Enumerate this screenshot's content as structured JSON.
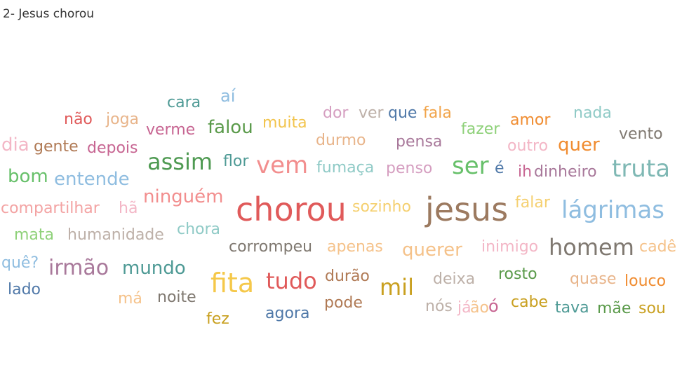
{
  "title": "2- Jesus chorou",
  "chart_data": {
    "type": "wordcloud",
    "title": "2- Jesus chorou",
    "words": [
      {
        "text": "cara",
        "color": "#4e9a95"
      },
      {
        "text": "aí",
        "color": "#8fbde0"
      },
      {
        "text": "não",
        "color": "#e05a5a"
      },
      {
        "text": "joga",
        "color": "#e8b48a"
      },
      {
        "text": "verme",
        "color": "#c76592"
      },
      {
        "text": "falou",
        "color": "#5a9a4a"
      },
      {
        "text": "muita",
        "color": "#f2c44d"
      },
      {
        "text": "dor",
        "color": "#d59ec0"
      },
      {
        "text": "ver",
        "color": "#bdb0a8"
      },
      {
        "text": "que",
        "color": "#4f78a8"
      },
      {
        "text": "fala",
        "color": "#f1a44a"
      },
      {
        "text": "amor",
        "color": "#f08c30"
      },
      {
        "text": "nada",
        "color": "#8fcac6"
      },
      {
        "text": "fazer",
        "color": "#8fd17a"
      },
      {
        "text": "vento",
        "color": "#7f7870"
      },
      {
        "text": "dia",
        "color": "#f3b6c6"
      },
      {
        "text": "gente",
        "color": "#b07a55"
      },
      {
        "text": "depois",
        "color": "#c76592"
      },
      {
        "text": "durmo",
        "color": "#e8b48a"
      },
      {
        "text": "pensa",
        "color": "#a8789a"
      },
      {
        "text": "outro",
        "color": "#f3b6c6"
      },
      {
        "text": "quer",
        "color": "#f08c30"
      },
      {
        "text": "assim",
        "color": "#4f9a52"
      },
      {
        "text": "flor",
        "color": "#4e9a95"
      },
      {
        "text": "vem",
        "color": "#f28e8e"
      },
      {
        "text": "fumaça",
        "color": "#8fcac6"
      },
      {
        "text": "penso",
        "color": "#d59ec0"
      },
      {
        "text": "ser",
        "color": "#67c06a"
      },
      {
        "text": "é",
        "color": "#4f78a8"
      },
      {
        "text": "ih",
        "color": "#c76592"
      },
      {
        "text": "dinheiro",
        "color": "#a8789a"
      },
      {
        "text": "truta",
        "color": "#7fb8b4"
      },
      {
        "text": "bom",
        "color": "#67c06a"
      },
      {
        "text": "entende",
        "color": "#8fbde0"
      },
      {
        "text": "ninguém",
        "color": "#f28e8e"
      },
      {
        "text": "compartilhar",
        "color": "#f3a3a3"
      },
      {
        "text": "hã",
        "color": "#f3b6c6"
      },
      {
        "text": "chorou",
        "color": "#e05a5a"
      },
      {
        "text": "sozinho",
        "color": "#f5d070"
      },
      {
        "text": "jesus",
        "color": "#9c7a60"
      },
      {
        "text": "falar",
        "color": "#f5d070"
      },
      {
        "text": "lágrimas",
        "color": "#8fbde0"
      },
      {
        "text": "mata",
        "color": "#8fd17a"
      },
      {
        "text": "humanidade",
        "color": "#bdb0a8"
      },
      {
        "text": "chora",
        "color": "#8fcac6"
      },
      {
        "text": "corrompeu",
        "color": "#7f7870"
      },
      {
        "text": "apenas",
        "color": "#f5c28a"
      },
      {
        "text": "querer",
        "color": "#f5c28a"
      },
      {
        "text": "inimigo",
        "color": "#f3b6c6"
      },
      {
        "text": "homem",
        "color": "#7f7870"
      },
      {
        "text": "cadê",
        "color": "#f5c28a"
      },
      {
        "text": "quê?",
        "color": "#8fbde0"
      },
      {
        "text": "irmão",
        "color": "#a8789a"
      },
      {
        "text": "mundo",
        "color": "#4e9a95"
      },
      {
        "text": "fita",
        "color": "#f5c84a"
      },
      {
        "text": "tudo",
        "color": "#e05a5a"
      },
      {
        "text": "durão",
        "color": "#b07a55"
      },
      {
        "text": "mil",
        "color": "#c9a020"
      },
      {
        "text": "deixa",
        "color": "#bdb0a8"
      },
      {
        "text": "rosto",
        "color": "#5a9a4a"
      },
      {
        "text": "quase",
        "color": "#e8b48a"
      },
      {
        "text": "louco",
        "color": "#f08c30"
      },
      {
        "text": "lado",
        "color": "#4f78a8"
      },
      {
        "text": "má",
        "color": "#f5c28a"
      },
      {
        "text": "noite",
        "color": "#7f7870"
      },
      {
        "text": "pode",
        "color": "#b07a55"
      },
      {
        "text": "agora",
        "color": "#4f78a8"
      },
      {
        "text": "nós",
        "color": "#bdb0a8"
      },
      {
        "text": "já",
        "color": "#f3b6c6"
      },
      {
        "text": "ão",
        "color": "#f5c28a"
      },
      {
        "text": "ó",
        "color": "#c76592"
      },
      {
        "text": "cabe",
        "color": "#c9a020"
      },
      {
        "text": "tava",
        "color": "#4e9a95"
      },
      {
        "text": "mãe",
        "color": "#5a9a4a"
      },
      {
        "text": "sou",
        "color": "#c9a020"
      },
      {
        "text": "fez",
        "color": "#c9a020"
      }
    ]
  }
}
